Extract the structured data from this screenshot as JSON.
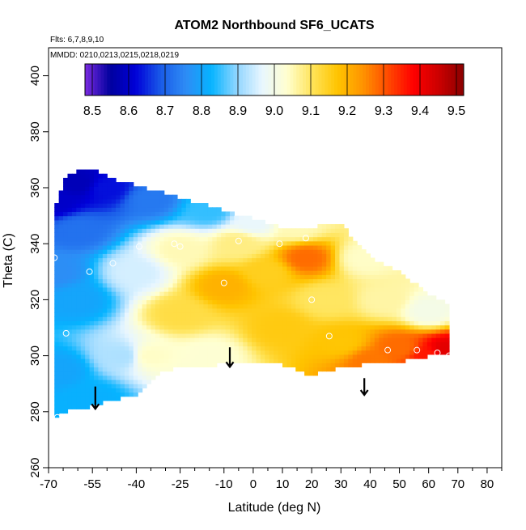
{
  "chart_data": {
    "type": "heatmap",
    "title": "ATOM2 Northbound SF6_UCATS",
    "annotations": [
      "Flts: 6,7,8,9,10",
      "MMDD: 0210,0213,0215,0218,0219"
    ],
    "xlabel": "Latitude (deg N)",
    "ylabel": "Theta (C)",
    "xlim": [
      -70,
      85
    ],
    "ylim": [
      260,
      410
    ],
    "x_ticks": [
      -70,
      -55,
      -40,
      -25,
      -10,
      0,
      10,
      20,
      30,
      40,
      50,
      60,
      70,
      80
    ],
    "x_tick_labels": [
      "-70",
      "-55",
      "-40",
      "-25",
      "-10",
      "0",
      "10",
      "20",
      "30",
      "40",
      "50",
      "60",
      "70",
      "80"
    ],
    "x_minor_ticks": [
      -65,
      -60,
      -50,
      -45,
      -35,
      -30,
      -20,
      -15,
      -5,
      5,
      15,
      25,
      35,
      45,
      55,
      65,
      75,
      85
    ],
    "y_ticks": [
      260,
      280,
      300,
      320,
      340,
      360,
      380,
      400
    ],
    "y_tick_labels": [
      "260",
      "280",
      "300",
      "320",
      "340",
      "360",
      "380",
      "400"
    ],
    "colorbar": {
      "ticks": [
        8.5,
        8.6,
        8.7,
        8.8,
        8.9,
        9.0,
        9.1,
        9.2,
        9.3,
        9.4,
        9.5
      ],
      "tick_labels": [
        "8.5",
        "8.6",
        "8.7",
        "8.8",
        "8.9",
        "9.0",
        "9.1",
        "9.2",
        "9.3",
        "9.4",
        "9.5"
      ],
      "range": [
        8.48,
        9.52
      ],
      "colors": [
        "#7b2be0",
        "#00009e",
        "#0000d8",
        "#1a5be8",
        "#2e8cf5",
        "#05b4ff",
        "#8fd5ff",
        "#e8f6ff",
        "#ffffd0",
        "#ffe45a",
        "#ffc400",
        "#ff9400",
        "#ff4a00",
        "#ff0000",
        "#cc0000",
        "#8a0000"
      ]
    },
    "field_bounds": [
      [
        -68,
        278,
        350
      ],
      [
        -67,
        279,
        356
      ],
      [
        -64,
        280,
        364
      ],
      [
        -60,
        281,
        366
      ],
      [
        -55,
        282,
        367
      ],
      [
        -50,
        284,
        364
      ],
      [
        -45,
        285,
        362
      ],
      [
        -40,
        286,
        361
      ],
      [
        -30,
        295,
        358
      ],
      [
        -20,
        296,
        355
      ],
      [
        -10,
        297,
        352
      ],
      [
        0,
        297,
        349
      ],
      [
        10,
        297,
        346
      ],
      [
        20,
        293,
        346
      ],
      [
        30,
        296,
        347
      ],
      [
        40,
        297,
        335
      ],
      [
        50,
        298,
        330
      ],
      [
        60,
        300,
        322
      ],
      [
        67,
        300,
        318
      ]
    ],
    "field_samples": [
      {
        "lat": -68,
        "theta": 355,
        "value": 8.6
      },
      {
        "lat": -60,
        "theta": 362,
        "value": 8.58
      },
      {
        "lat": -50,
        "theta": 360,
        "value": 8.63
      },
      {
        "lat": -35,
        "theta": 356,
        "value": 8.73
      },
      {
        "lat": -15,
        "theta": 352,
        "value": 8.85
      },
      {
        "lat": 0,
        "theta": 348,
        "value": 8.97
      },
      {
        "lat": 15,
        "theta": 346,
        "value": 9.05
      },
      {
        "lat": -60,
        "theta": 345,
        "value": 8.72
      },
      {
        "lat": -68,
        "theta": 330,
        "value": 8.76
      },
      {
        "lat": -60,
        "theta": 320,
        "value": 8.8
      },
      {
        "lat": -66,
        "theta": 295,
        "value": 8.8
      },
      {
        "lat": -55,
        "theta": 285,
        "value": 8.82
      },
      {
        "lat": -45,
        "theta": 300,
        "value": 8.92
      },
      {
        "lat": -40,
        "theta": 330,
        "value": 8.95
      },
      {
        "lat": -25,
        "theta": 338,
        "value": 9.05
      },
      {
        "lat": -25,
        "theta": 315,
        "value": 9.12
      },
      {
        "lat": -35,
        "theta": 300,
        "value": 9.04
      },
      {
        "lat": -10,
        "theta": 325,
        "value": 9.2
      },
      {
        "lat": -5,
        "theta": 340,
        "value": 9.08
      },
      {
        "lat": 5,
        "theta": 330,
        "value": 9.15
      },
      {
        "lat": 18,
        "theta": 335,
        "value": 9.28
      },
      {
        "lat": 10,
        "theta": 310,
        "value": 9.16
      },
      {
        "lat": -15,
        "theta": 300,
        "value": 9.03
      },
      {
        "lat": 25,
        "theta": 320,
        "value": 9.1
      },
      {
        "lat": 30,
        "theta": 305,
        "value": 9.17
      },
      {
        "lat": 40,
        "theta": 298,
        "value": 9.27
      },
      {
        "lat": 50,
        "theta": 303,
        "value": 9.28
      },
      {
        "lat": 60,
        "theta": 300,
        "value": 9.36
      },
      {
        "lat": 66,
        "theta": 302,
        "value": 9.42
      },
      {
        "lat": 45,
        "theta": 320,
        "value": 9.06
      },
      {
        "lat": 60,
        "theta": 316,
        "value": 9.0
      },
      {
        "lat": 38,
        "theta": 335,
        "value": 9.04
      }
    ],
    "sample_points": [
      {
        "lat": -68,
        "theta": 335
      },
      {
        "lat": -67,
        "theta": 278
      },
      {
        "lat": -64,
        "theta": 308
      },
      {
        "lat": -56,
        "theta": 330
      },
      {
        "lat": -48,
        "theta": 333
      },
      {
        "lat": -39,
        "theta": 339
      },
      {
        "lat": -27,
        "theta": 340
      },
      {
        "lat": -25,
        "theta": 339
      },
      {
        "lat": -10,
        "theta": 326
      },
      {
        "lat": -5,
        "theta": 341
      },
      {
        "lat": 9,
        "theta": 340
      },
      {
        "lat": 18,
        "theta": 342
      },
      {
        "lat": 20,
        "theta": 320
      },
      {
        "lat": 26,
        "theta": 307
      },
      {
        "lat": 46,
        "theta": 302
      },
      {
        "lat": 56,
        "theta": 302
      },
      {
        "lat": 63,
        "theta": 301
      },
      {
        "lat": 67,
        "theta": 300
      }
    ],
    "arrows": [
      {
        "lat": -54,
        "theta_top": 289,
        "theta_bottom": 281
      },
      {
        "lat": -8,
        "theta_top": 303,
        "theta_bottom": 296
      },
      {
        "lat": 38,
        "theta_top": 292,
        "theta_bottom": 286
      }
    ]
  }
}
